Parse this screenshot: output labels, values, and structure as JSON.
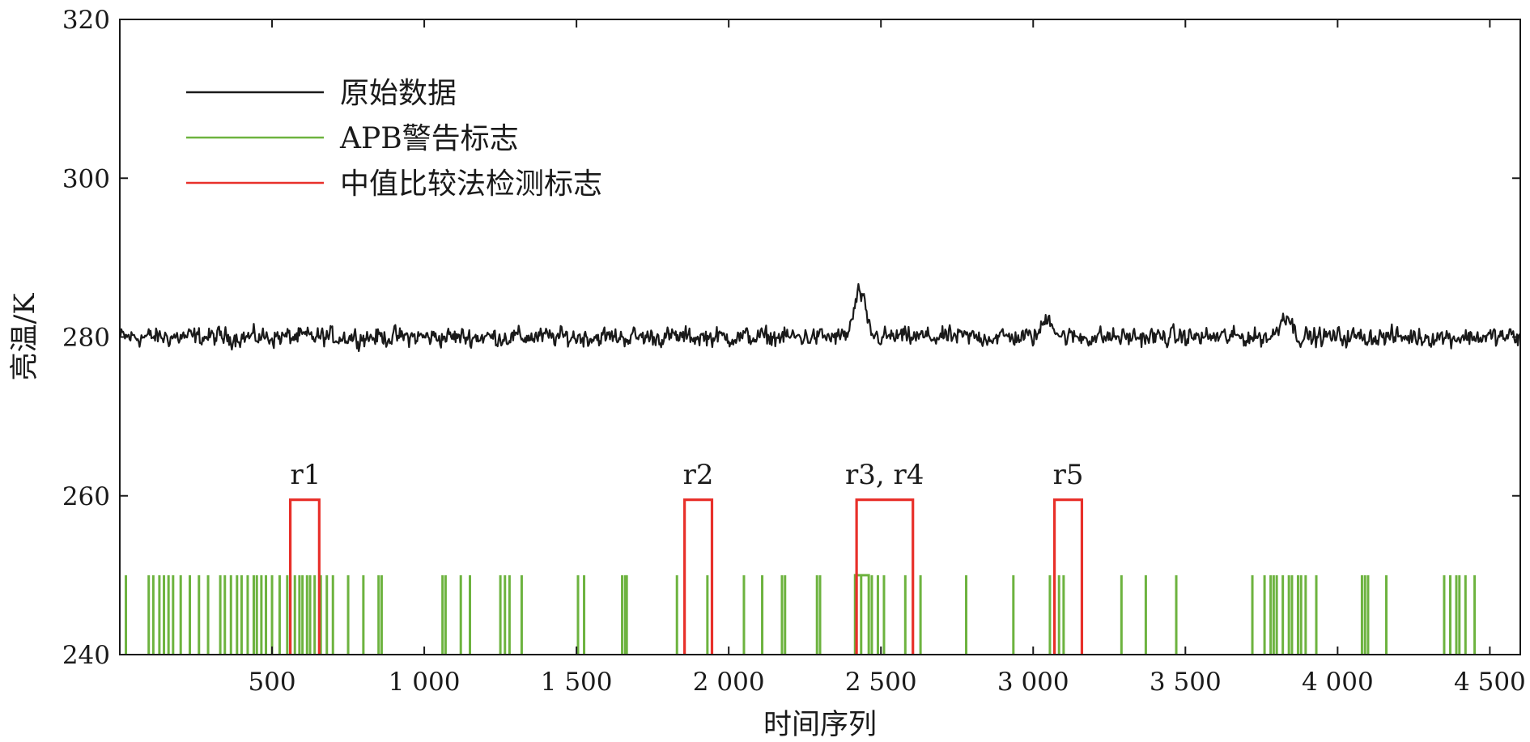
{
  "chart_data": {
    "type": "line",
    "xlabel": "时间序列",
    "ylabel": "亮温/K",
    "xlim": [
      0,
      4600
    ],
    "ylim": [
      240,
      320
    ],
    "xticks": [
      500,
      1000,
      1500,
      2000,
      2500,
      3000,
      3500,
      4000,
      4500
    ],
    "xtick_labels": [
      "500",
      "1 000",
      "1 500",
      "2 000",
      "2 500",
      "3 000",
      "3 500",
      "4 000",
      "4 500"
    ],
    "yticks": [
      240,
      260,
      280,
      300,
      320
    ],
    "ytick_labels": [
      "240",
      "260",
      "280",
      "300",
      "320"
    ],
    "grid": false,
    "legend_position": "top-left",
    "legend": [
      {
        "label": "原始数据",
        "color": "#1a1a1a"
      },
      {
        "label": "APB警告标志",
        "color": "#6db33f"
      },
      {
        "label": "中值比较法检测标志",
        "color": "#e8302a"
      }
    ],
    "series": [
      {
        "name": "原始数据",
        "color": "#1a1a1a",
        "baseline": 280,
        "noise_amplitude": 1.6,
        "bumps": [
          {
            "x": 2430,
            "peak": 285.5
          },
          {
            "x": 3050,
            "peak": 282.5
          },
          {
            "x": 3830,
            "peak": 283
          }
        ]
      },
      {
        "name": "APB警告标志",
        "color": "#6db33f",
        "low": 240,
        "high": 250,
        "spikes": [
          20,
          95,
          110,
          130,
          145,
          160,
          175,
          200,
          230,
          260,
          290,
          330,
          345,
          365,
          385,
          400,
          420,
          440,
          450,
          465,
          480,
          500,
          525,
          550,
          560,
          575,
          590,
          600,
          615,
          625,
          640,
          660,
          680,
          700,
          750,
          800,
          850,
          860,
          1060,
          1070,
          1120,
          1150,
          1250,
          1265,
          1280,
          1320,
          1505,
          1525,
          1650,
          1660,
          1665,
          1830,
          1930,
          2050,
          2110,
          2175,
          2185,
          2290,
          2300,
          2435,
          2470,
          2490,
          2510,
          2580,
          2630,
          2780,
          2935,
          3055,
          3070,
          3085,
          3100,
          3290,
          3370,
          3470,
          3720,
          3760,
          3780,
          3790,
          3800,
          3820,
          3840,
          3850,
          3870,
          3880,
          3895,
          3930,
          4080,
          4090,
          4100,
          4160,
          4350,
          4370,
          4390,
          4400,
          4420,
          4450
        ],
        "blocks": [
          {
            "from": 2415,
            "to": 2460
          }
        ]
      },
      {
        "name": "中值比较法检测标志",
        "color": "#e8302a",
        "low": 240,
        "high": 259.5,
        "intervals": [
          {
            "from": 560,
            "to": 655
          },
          {
            "from": 1855,
            "to": 1945
          },
          {
            "from": 2420,
            "to": 2605
          },
          {
            "from": 3070,
            "to": 3160
          }
        ]
      }
    ],
    "annotations": [
      {
        "text": "r1",
        "x": 610,
        "y": 261.5
      },
      {
        "text": "r2",
        "x": 1900,
        "y": 261.5
      },
      {
        "text": "r3, r4",
        "x": 2512,
        "y": 261.5
      },
      {
        "text": "r5",
        "x": 3115,
        "y": 261.5
      }
    ]
  }
}
